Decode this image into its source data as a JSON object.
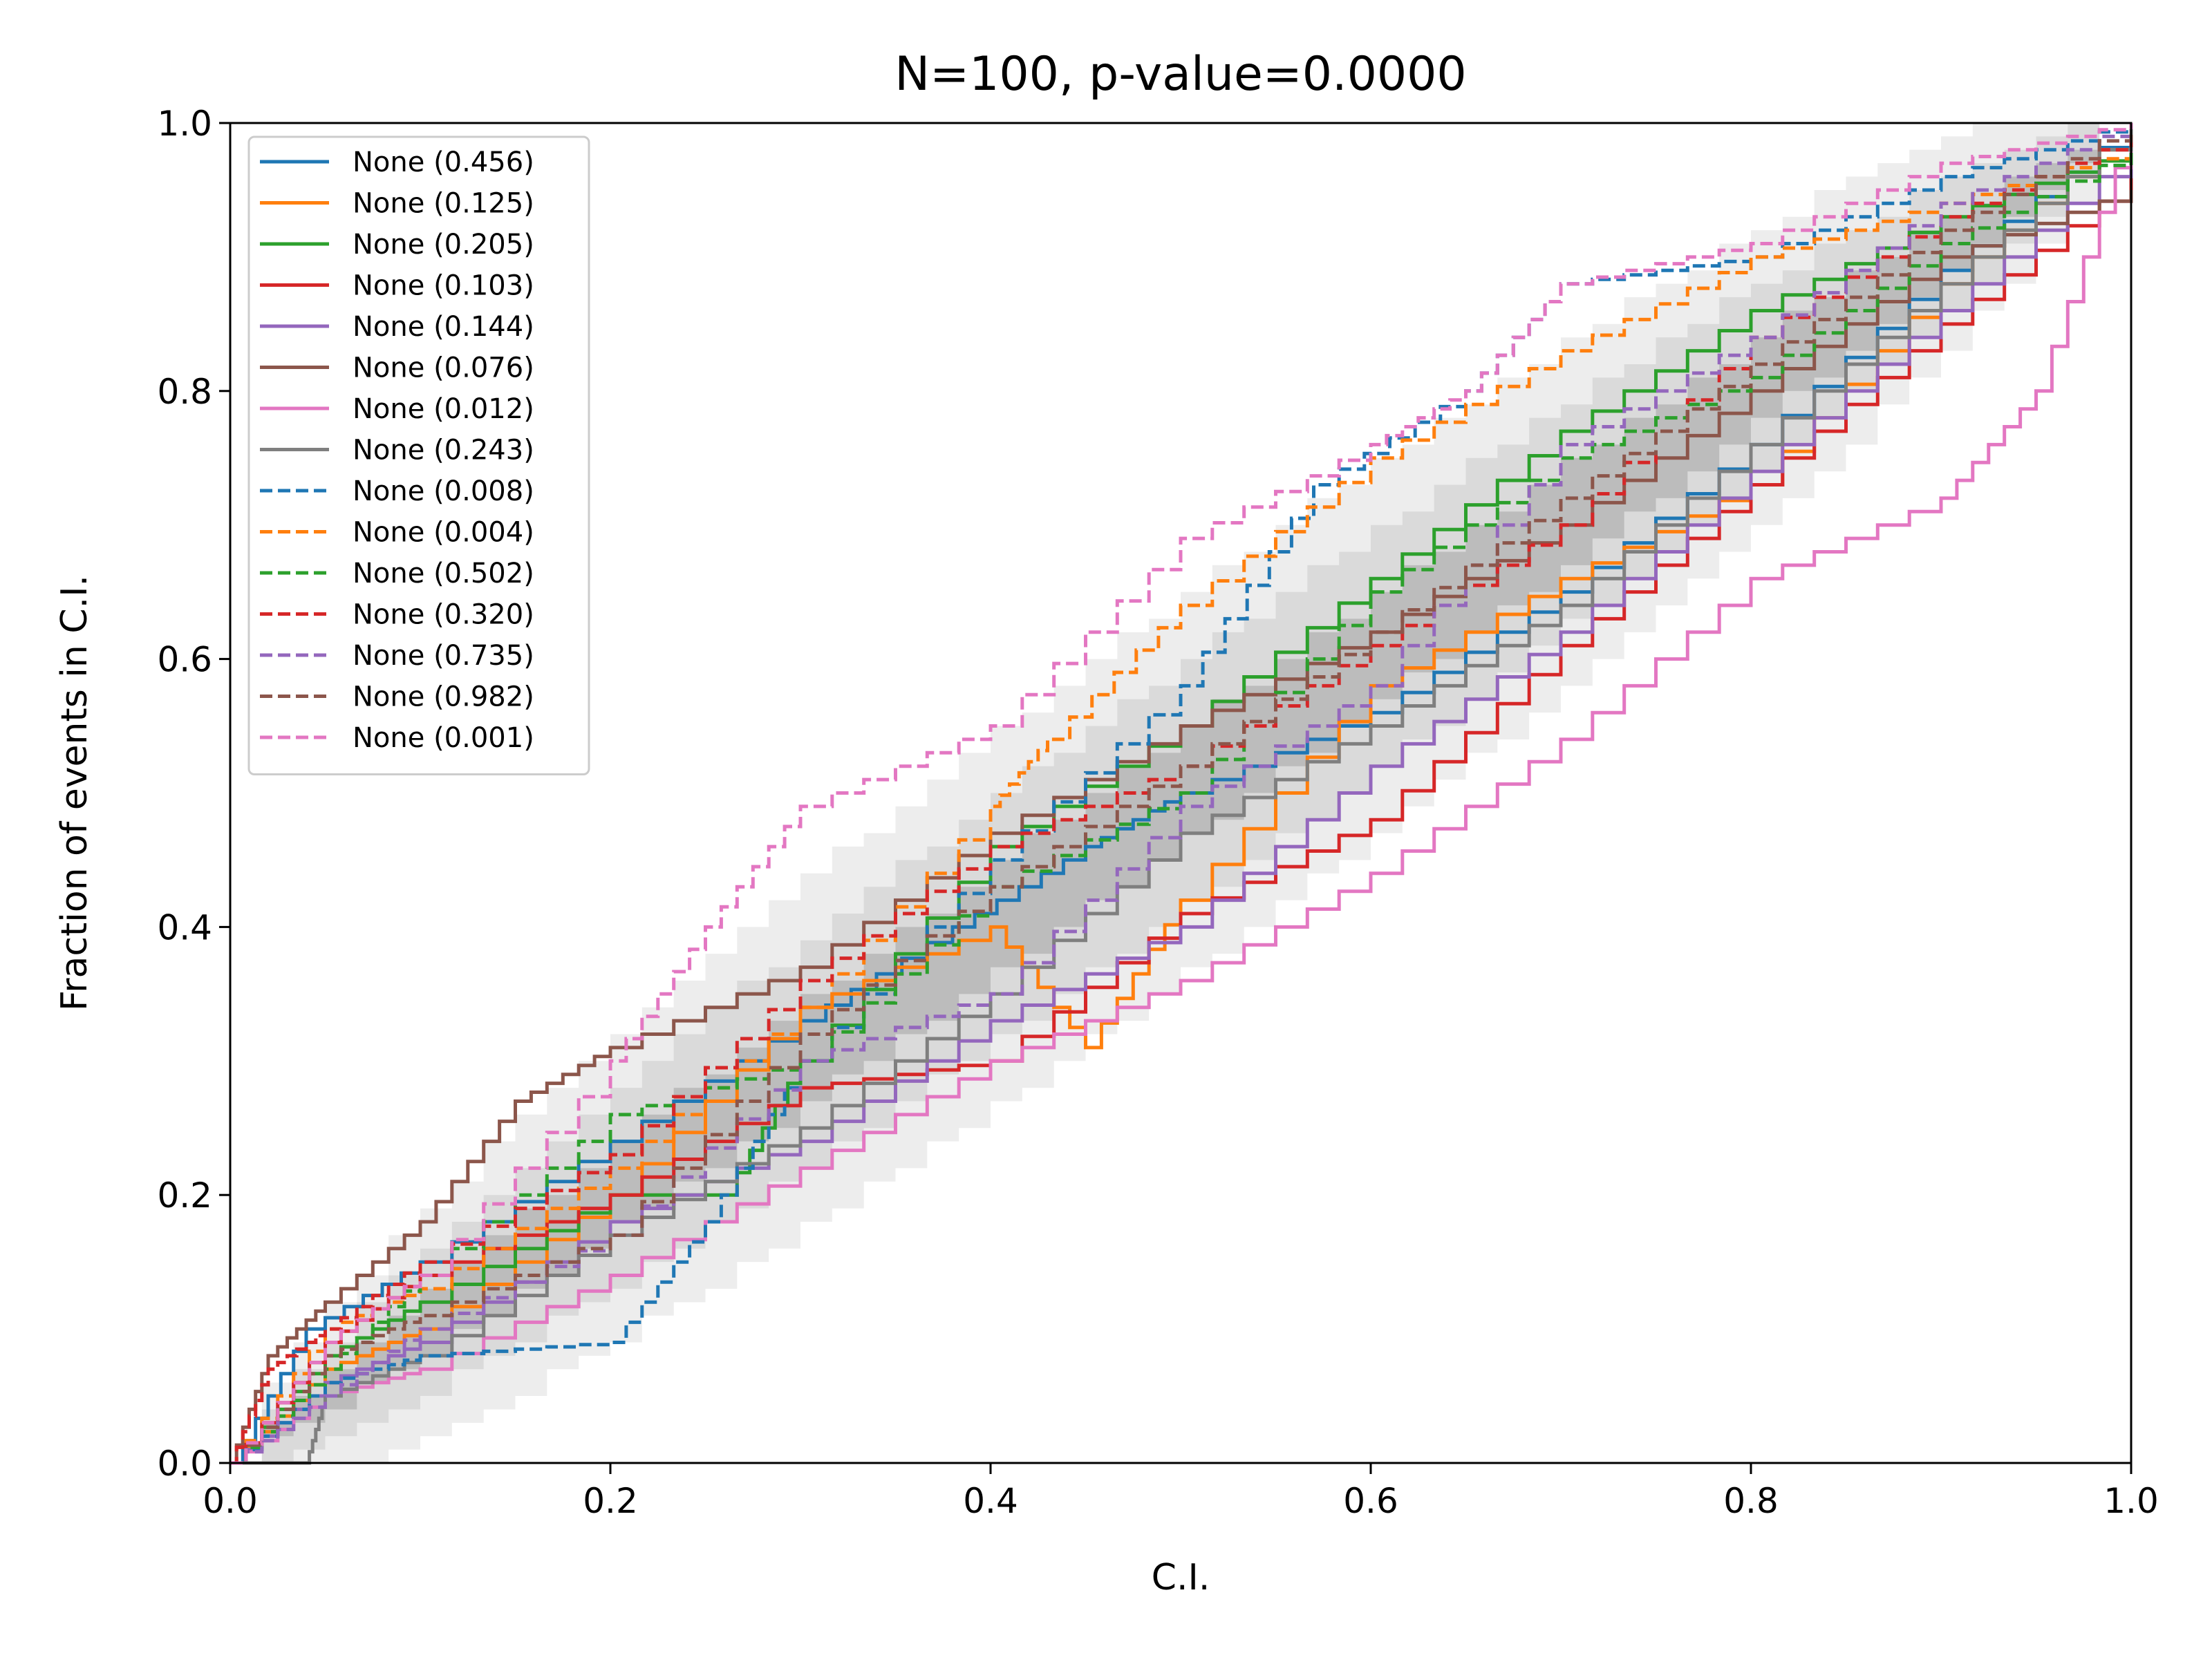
{
  "chart_data": {
    "type": "line",
    "title": "N=100, p-value=0.0000",
    "xlabel": "C.I.",
    "ylabel": "Fraction of events in C.I.",
    "xlim": [
      0,
      1
    ],
    "ylim": [
      0,
      1
    ],
    "x_ticks": [
      "0.0",
      "0.2",
      "0.4",
      "0.6",
      "0.8",
      "1.0"
    ],
    "y_ticks": [
      "0.0",
      "0.2",
      "0.4",
      "0.6",
      "0.8",
      "1.0"
    ],
    "grid": false,
    "legend_position": "top-left",
    "confidence_bands": [
      {
        "name": "1-sigma",
        "color": "#a8a8a8",
        "opacity": 0.6,
        "half_width_scale": 0.5
      },
      {
        "name": "2-sigma",
        "color": "#c8c8c8",
        "opacity": 0.5,
        "half_width_scale": 1.0
      },
      {
        "name": "3-sigma",
        "color": "#dedede",
        "opacity": 0.55,
        "half_width_scale": 1.5
      }
    ],
    "series": [
      {
        "label": "None (0.456)",
        "color": "#1f77b4",
        "dash": "solid",
        "points": [
          [
            0,
            0
          ],
          [
            0.04,
            0.1
          ],
          [
            0.1,
            0.15
          ],
          [
            0.2,
            0.24
          ],
          [
            0.3,
            0.33
          ],
          [
            0.38,
            0.4
          ],
          [
            0.45,
            0.46
          ],
          [
            0.5,
            0.5
          ],
          [
            0.6,
            0.56
          ],
          [
            0.7,
            0.65
          ],
          [
            0.8,
            0.76
          ],
          [
            0.9,
            0.89
          ],
          [
            1,
            1
          ]
        ]
      },
      {
        "label": "None (0.125)",
        "color": "#ff7f0e",
        "dash": "solid",
        "points": [
          [
            0,
            0
          ],
          [
            0.05,
            0.07
          ],
          [
            0.1,
            0.1
          ],
          [
            0.2,
            0.2
          ],
          [
            0.3,
            0.34
          ],
          [
            0.4,
            0.4
          ],
          [
            0.45,
            0.31
          ],
          [
            0.5,
            0.42
          ],
          [
            0.6,
            0.58
          ],
          [
            0.7,
            0.66
          ],
          [
            0.8,
            0.73
          ],
          [
            0.9,
            0.88
          ],
          [
            1,
            1
          ]
        ]
      },
      {
        "label": "None (0.205)",
        "color": "#2ca02c",
        "dash": "solid",
        "points": [
          [
            0,
            0
          ],
          [
            0.05,
            0.08
          ],
          [
            0.1,
            0.12
          ],
          [
            0.2,
            0.2
          ],
          [
            0.26,
            0.2
          ],
          [
            0.3,
            0.3
          ],
          [
            0.4,
            0.46
          ],
          [
            0.5,
            0.55
          ],
          [
            0.6,
            0.66
          ],
          [
            0.7,
            0.77
          ],
          [
            0.8,
            0.86
          ],
          [
            0.9,
            0.93
          ],
          [
            1,
            0.98
          ]
        ]
      },
      {
        "label": "None (0.103)",
        "color": "#d62728",
        "dash": "solid",
        "points": [
          [
            0,
            0
          ],
          [
            0.05,
            0.09
          ],
          [
            0.1,
            0.14
          ],
          [
            0.2,
            0.2
          ],
          [
            0.3,
            0.28
          ],
          [
            0.4,
            0.3
          ],
          [
            0.5,
            0.41
          ],
          [
            0.6,
            0.48
          ],
          [
            0.7,
            0.61
          ],
          [
            0.8,
            0.73
          ],
          [
            0.9,
            0.85
          ],
          [
            1,
            0.96
          ]
        ]
      },
      {
        "label": "None (0.144)",
        "color": "#9467bd",
        "dash": "solid",
        "points": [
          [
            0,
            0
          ],
          [
            0.05,
            0.06
          ],
          [
            0.1,
            0.09
          ],
          [
            0.2,
            0.18
          ],
          [
            0.3,
            0.24
          ],
          [
            0.4,
            0.33
          ],
          [
            0.5,
            0.4
          ],
          [
            0.6,
            0.52
          ],
          [
            0.7,
            0.62
          ],
          [
            0.8,
            0.74
          ],
          [
            0.9,
            0.86
          ],
          [
            1,
            0.98
          ]
        ]
      },
      {
        "label": "None (0.076)",
        "color": "#8c564b",
        "dash": "solid",
        "points": [
          [
            0,
            0
          ],
          [
            0.02,
            0.08
          ],
          [
            0.05,
            0.12
          ],
          [
            0.1,
            0.18
          ],
          [
            0.15,
            0.27
          ],
          [
            0.2,
            0.31
          ],
          [
            0.3,
            0.37
          ],
          [
            0.4,
            0.47
          ],
          [
            0.5,
            0.55
          ],
          [
            0.6,
            0.62
          ],
          [
            0.7,
            0.7
          ],
          [
            0.8,
            0.8
          ],
          [
            0.9,
            0.9
          ],
          [
            1,
            0.95
          ]
        ]
      },
      {
        "label": "None (0.012)",
        "color": "#e377c2",
        "dash": "solid",
        "points": [
          [
            0,
            0
          ],
          [
            0.05,
            0.05
          ],
          [
            0.1,
            0.07
          ],
          [
            0.2,
            0.14
          ],
          [
            0.3,
            0.22
          ],
          [
            0.4,
            0.3
          ],
          [
            0.5,
            0.36
          ],
          [
            0.6,
            0.44
          ],
          [
            0.7,
            0.54
          ],
          [
            0.8,
            0.66
          ],
          [
            0.9,
            0.72
          ],
          [
            0.95,
            0.8
          ],
          [
            1,
            1
          ]
        ]
      },
      {
        "label": "None (0.243)",
        "color": "#7f7f7f",
        "dash": "solid",
        "points": [
          [
            0,
            0
          ],
          [
            0.04,
            0.0
          ],
          [
            0.05,
            0.05
          ],
          [
            0.1,
            0.08
          ],
          [
            0.2,
            0.17
          ],
          [
            0.3,
            0.25
          ],
          [
            0.4,
            0.35
          ],
          [
            0.5,
            0.47
          ],
          [
            0.6,
            0.55
          ],
          [
            0.7,
            0.64
          ],
          [
            0.8,
            0.76
          ],
          [
            0.9,
            0.88
          ],
          [
            1,
            1
          ]
        ]
      },
      {
        "label": "None (0.008)",
        "color": "#1f77b4",
        "dash": "dashed",
        "points": [
          [
            0,
            0
          ],
          [
            0.05,
            0.06
          ],
          [
            0.1,
            0.08
          ],
          [
            0.2,
            0.09
          ],
          [
            0.25,
            0.18
          ],
          [
            0.3,
            0.3
          ],
          [
            0.4,
            0.45
          ],
          [
            0.5,
            0.58
          ],
          [
            0.57,
            0.73
          ],
          [
            0.65,
            0.8
          ],
          [
            0.7,
            0.88
          ],
          [
            0.8,
            0.9
          ],
          [
            0.9,
            0.96
          ],
          [
            1,
            1
          ]
        ]
      },
      {
        "label": "None (0.004)",
        "color": "#ff7f0e",
        "dash": "dashed",
        "points": [
          [
            0,
            0
          ],
          [
            0.05,
            0.1
          ],
          [
            0.1,
            0.13
          ],
          [
            0.2,
            0.22
          ],
          [
            0.3,
            0.34
          ],
          [
            0.4,
            0.49
          ],
          [
            0.43,
            0.54
          ],
          [
            0.5,
            0.64
          ],
          [
            0.6,
            0.75
          ],
          [
            0.7,
            0.83
          ],
          [
            0.8,
            0.9
          ],
          [
            0.9,
            0.94
          ],
          [
            1,
            0.98
          ]
        ]
      },
      {
        "label": "None (0.502)",
        "color": "#2ca02c",
        "dash": "dashed",
        "points": [
          [
            0,
            0
          ],
          [
            0.05,
            0.07
          ],
          [
            0.1,
            0.14
          ],
          [
            0.2,
            0.26
          ],
          [
            0.3,
            0.3
          ],
          [
            0.4,
            0.43
          ],
          [
            0.5,
            0.5
          ],
          [
            0.6,
            0.65
          ],
          [
            0.7,
            0.75
          ],
          [
            0.8,
            0.81
          ],
          [
            0.9,
            0.91
          ],
          [
            1,
            0.98
          ]
        ]
      },
      {
        "label": "None (0.320)",
        "color": "#d62728",
        "dash": "dashed",
        "points": [
          [
            0,
            0
          ],
          [
            0.02,
            0.07
          ],
          [
            0.05,
            0.1
          ],
          [
            0.1,
            0.15
          ],
          [
            0.2,
            0.23
          ],
          [
            0.3,
            0.36
          ],
          [
            0.4,
            0.46
          ],
          [
            0.5,
            0.52
          ],
          [
            0.6,
            0.61
          ],
          [
            0.7,
            0.7
          ],
          [
            0.8,
            0.84
          ],
          [
            0.9,
            0.93
          ],
          [
            1,
            0.99
          ]
        ]
      },
      {
        "label": "None (0.735)",
        "color": "#9467bd",
        "dash": "dashed",
        "points": [
          [
            0,
            0
          ],
          [
            0.05,
            0.05
          ],
          [
            0.1,
            0.1
          ],
          [
            0.2,
            0.17
          ],
          [
            0.3,
            0.3
          ],
          [
            0.4,
            0.35
          ],
          [
            0.5,
            0.49
          ],
          [
            0.6,
            0.58
          ],
          [
            0.7,
            0.76
          ],
          [
            0.8,
            0.84
          ],
          [
            0.9,
            0.94
          ],
          [
            1,
            1
          ]
        ]
      },
      {
        "label": "None (0.982)",
        "color": "#8c564b",
        "dash": "dashed",
        "points": [
          [
            0,
            0
          ],
          [
            0.05,
            0.08
          ],
          [
            0.1,
            0.11
          ],
          [
            0.2,
            0.17
          ],
          [
            0.3,
            0.32
          ],
          [
            0.4,
            0.43
          ],
          [
            0.5,
            0.52
          ],
          [
            0.6,
            0.62
          ],
          [
            0.7,
            0.72
          ],
          [
            0.8,
            0.82
          ],
          [
            0.9,
            0.92
          ],
          [
            1,
            1
          ]
        ]
      },
      {
        "label": "None (0.001)",
        "color": "#e377c2",
        "dash": "dashed",
        "points": [
          [
            0,
            0
          ],
          [
            0.05,
            0.09
          ],
          [
            0.1,
            0.14
          ],
          [
            0.2,
            0.3
          ],
          [
            0.25,
            0.4
          ],
          [
            0.3,
            0.49
          ],
          [
            0.4,
            0.55
          ],
          [
            0.5,
            0.69
          ],
          [
            0.6,
            0.76
          ],
          [
            0.65,
            0.8
          ],
          [
            0.7,
            0.88
          ],
          [
            0.8,
            0.91
          ],
          [
            0.9,
            0.97
          ],
          [
            1,
            1
          ]
        ]
      }
    ]
  }
}
